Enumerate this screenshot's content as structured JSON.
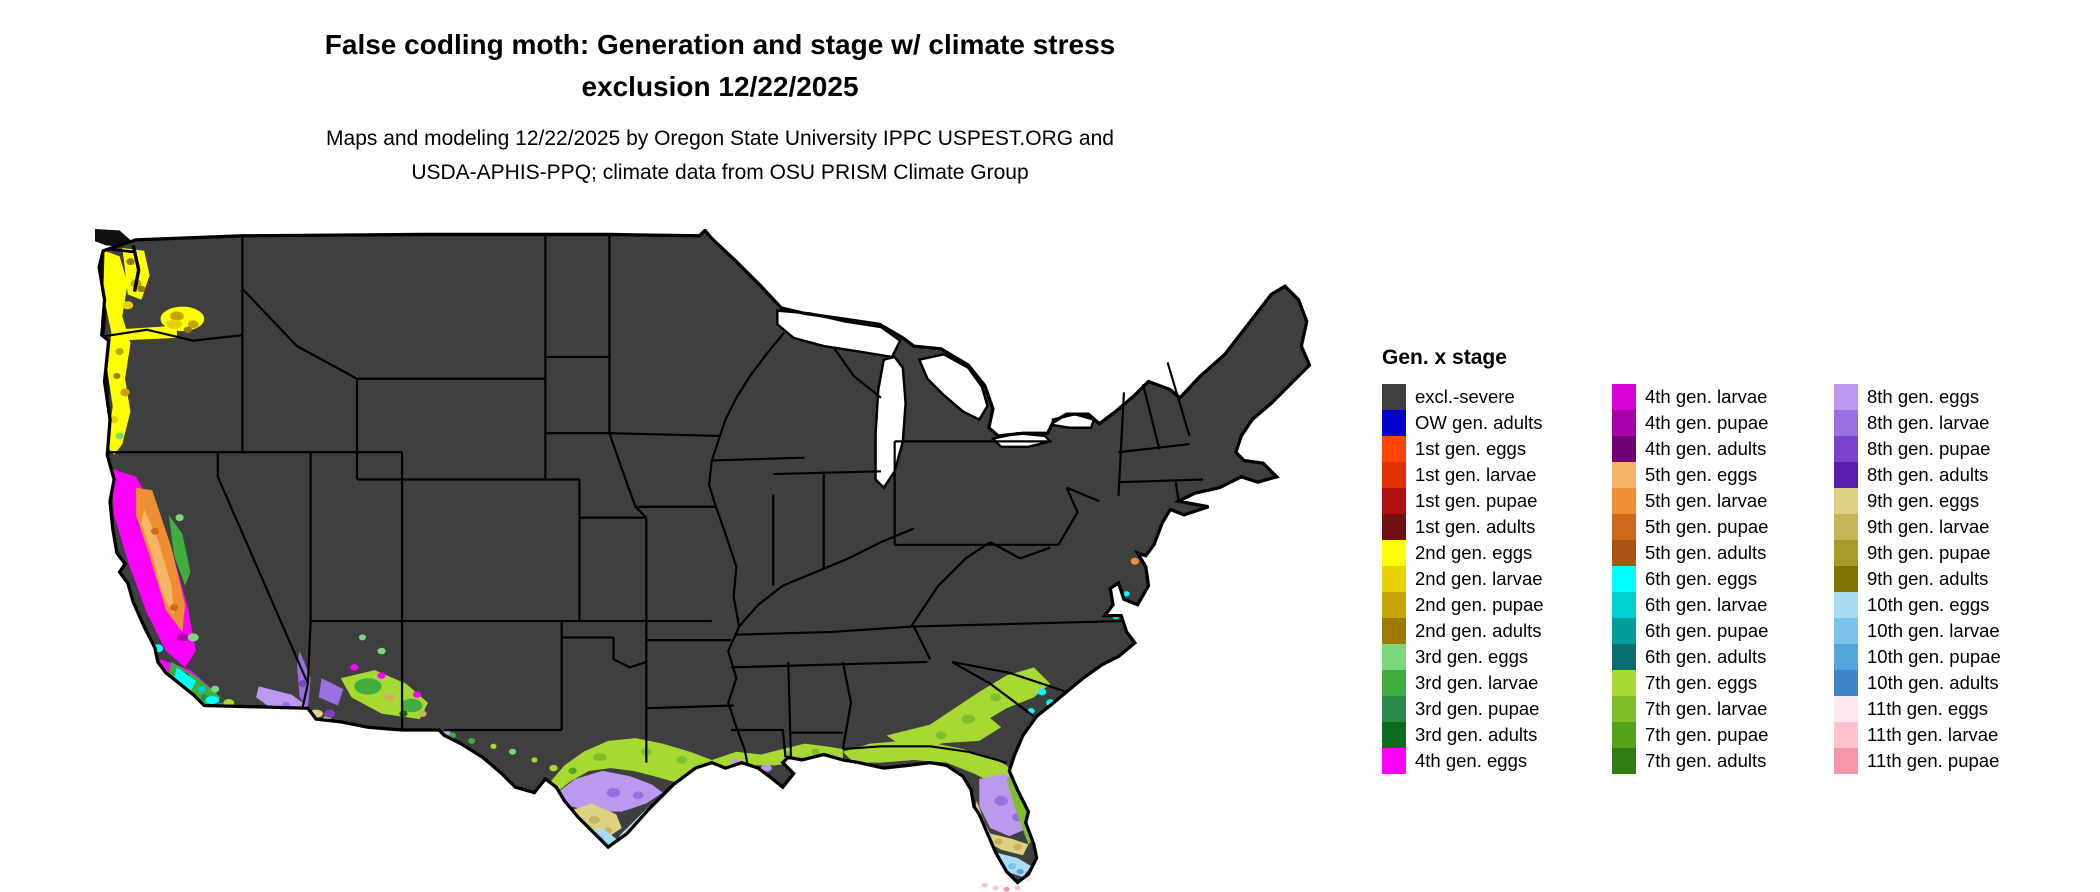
{
  "title": {
    "line1": "False codling moth: Generation and stage w/ climate stress",
    "line2": "exclusion 12/22/2025"
  },
  "subtitle": {
    "line1": "Maps and modeling 12/22/2025 by Oregon State University IPPC USPEST.ORG and",
    "line2": "USDA-APHIS-PPQ; climate data from OSU PRISM Climate Group"
  },
  "map": {
    "background": "#ffffff",
    "lake_fill": "#ffffff",
    "border_color": "#000000",
    "coast_band_color": "#0f0f0f",
    "canada_land_color": "#101010"
  },
  "legend": {
    "title": "Gen. x stage",
    "columns": [
      {
        "entries": [
          {
            "label": "excl.-severe",
            "color": "#3f3f3f"
          },
          {
            "label": "OW gen. adults",
            "color": "#0000cc"
          },
          {
            "label": "1st gen. eggs",
            "color": "#ff4500"
          },
          {
            "label": "1st gen. larvae",
            "color": "#e03200"
          },
          {
            "label": "1st gen. pupae",
            "color": "#b01010"
          },
          {
            "label": "1st gen. adults",
            "color": "#701010"
          },
          {
            "label": "2nd gen. eggs",
            "color": "#ffff00"
          },
          {
            "label": "2nd gen. larvae",
            "color": "#e6d200"
          },
          {
            "label": "2nd gen. pupae",
            "color": "#c4a500"
          },
          {
            "label": "2nd gen. adults",
            "color": "#9c7a00"
          },
          {
            "label": "3rd gen. eggs",
            "color": "#7cd67c"
          },
          {
            "label": "3rd gen. larvae",
            "color": "#3fae3f"
          },
          {
            "label": "3rd gen. pupae",
            "color": "#2a8a4a"
          },
          {
            "label": "3rd gen. adults",
            "color": "#0e6b1e"
          },
          {
            "label": "4th gen. eggs",
            "color": "#ff00ff"
          }
        ]
      },
      {
        "entries": [
          {
            "label": "4th gen. larvae",
            "color": "#d800d8"
          },
          {
            "label": "4th gen. pupae",
            "color": "#a800a8"
          },
          {
            "label": "4th gen. adults",
            "color": "#700070"
          },
          {
            "label": "5th gen. eggs",
            "color": "#f6b469"
          },
          {
            "label": "5th gen. larvae",
            "color": "#ef8f33"
          },
          {
            "label": "5th gen. pupae",
            "color": "#d06a1a"
          },
          {
            "label": "5th gen. adults",
            "color": "#a85414"
          },
          {
            "label": "6th gen. eggs",
            "color": "#00ffff"
          },
          {
            "label": "6th gen. larvae",
            "color": "#00cfcf"
          },
          {
            "label": "6th gen. pupae",
            "color": "#009e9e"
          },
          {
            "label": "6th gen. adults",
            "color": "#0a6e6e"
          },
          {
            "label": "7th gen. eggs",
            "color": "#a8d832"
          },
          {
            "label": "7th gen. larvae",
            "color": "#7fc02a"
          },
          {
            "label": "7th gen. pupae",
            "color": "#54a31c"
          },
          {
            "label": "7th gen. adults",
            "color": "#2f7d12"
          }
        ]
      },
      {
        "entries": [
          {
            "label": "8th gen. eggs",
            "color": "#bb99ee"
          },
          {
            "label": "8th gen. larvae",
            "color": "#9a70e0"
          },
          {
            "label": "8th gen. pupae",
            "color": "#7a42cc"
          },
          {
            "label": "8th gen. adults",
            "color": "#5a1aaa"
          },
          {
            "label": "9th gen. eggs",
            "color": "#ddd184"
          },
          {
            "label": "9th gen. larvae",
            "color": "#c4b557"
          },
          {
            "label": "9th gen. pupae",
            "color": "#a79a2c"
          },
          {
            "label": "9th gen. adults",
            "color": "#7d7404"
          },
          {
            "label": "10th gen. eggs",
            "color": "#a8dcf5"
          },
          {
            "label": "10th gen. larvae",
            "color": "#7cc3ea"
          },
          {
            "label": "10th gen. pupae",
            "color": "#54a4dc"
          },
          {
            "label": "10th gen. adults",
            "color": "#3e86c8"
          },
          {
            "label": "11th gen. eggs",
            "color": "#ffe9ef"
          },
          {
            "label": "11th gen. larvae",
            "color": "#ffc2ce"
          },
          {
            "label": "11th gen. pupae",
            "color": "#f795ab"
          }
        ]
      }
    ]
  }
}
